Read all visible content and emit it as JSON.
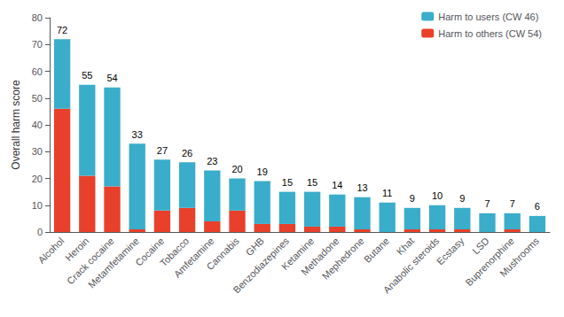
{
  "chart_data": {
    "type": "bar",
    "stacked": true,
    "categories": [
      "Alcohol",
      "Heroin",
      "Crack cocaine",
      "Metamfetamine",
      "Cocaine",
      "Tobacco",
      "Amfetamine",
      "Cannabis",
      "GHB",
      "Benzodiazepines",
      "Ketamine",
      "Methadone",
      "Mephedrone",
      "Butane",
      "Khat",
      "Anabolic steroids",
      "Ecstasy",
      "LSD",
      "Buprenorphine",
      "Mushrooms"
    ],
    "series": [
      {
        "name": "Harm to others (CW 54)",
        "color": "#e8402a",
        "values": [
          46,
          21,
          17,
          1,
          8,
          9,
          4,
          8,
          3,
          3,
          2,
          2,
          1,
          0,
          1,
          1,
          1,
          0,
          1,
          0
        ]
      },
      {
        "name": "Harm to users (CW 46)",
        "color": "#3aadca",
        "values": [
          26,
          34,
          37,
          32,
          19,
          17,
          19,
          12,
          16,
          12,
          13,
          12,
          12,
          11,
          8,
          9,
          8,
          7,
          6,
          6
        ]
      }
    ],
    "totals": [
      72,
      55,
      54,
      33,
      27,
      26,
      23,
      20,
      19,
      15,
      15,
      14,
      13,
      11,
      9,
      10,
      9,
      7,
      7,
      6
    ],
    "ylabel": "Overall harm score",
    "ylim": [
      0,
      80
    ],
    "yticks": [
      0,
      10,
      20,
      30,
      40,
      50,
      60,
      70,
      80
    ],
    "legend_order": [
      "Harm to users (CW 46)",
      "Harm to others (CW 54)"
    ],
    "legend": "upper right",
    "grid": false
  }
}
